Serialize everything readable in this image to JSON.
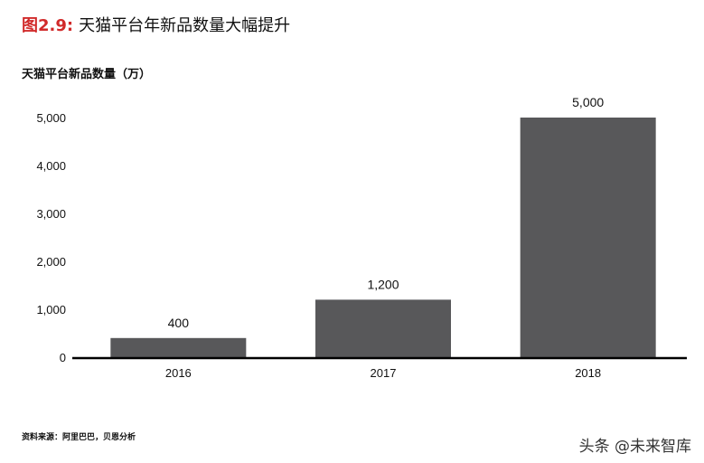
{
  "figure": {
    "label": "图2.9:",
    "title": "天猫平台年新品数量大幅提升",
    "unit_label": "天猫平台新品数量（万）",
    "source": "资料来源：阿里巴巴，贝恩分析",
    "watermark": "头条 @未来智库"
  },
  "chart_data": {
    "type": "bar",
    "title": "天猫平台年新品数量大幅提升",
    "ylabel": "天猫平台新品数量（万）",
    "xlabel": "",
    "categories": [
      "2016",
      "2017",
      "2018"
    ],
    "values": [
      400,
      1200,
      5000
    ],
    "data_labels": [
      "400",
      "1,200",
      "5,000"
    ],
    "ylim": [
      0,
      5000
    ],
    "yticks": [
      0,
      1000,
      2000,
      3000,
      4000,
      5000
    ],
    "ytick_labels": [
      "0",
      "1,000",
      "2,000",
      "3,000",
      "4,000",
      "5,000"
    ],
    "grid": false,
    "colors": {
      "bar": "#58585a",
      "axis": "#000000",
      "accent": "#d12a2a"
    }
  }
}
